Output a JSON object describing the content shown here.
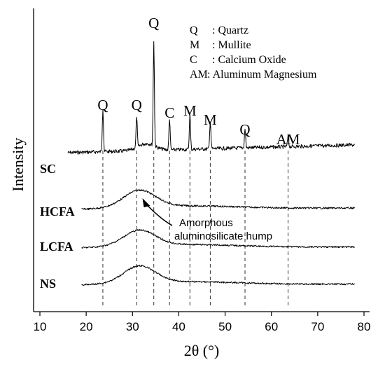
{
  "chart_data": {
    "type": "line",
    "xlabel": "2θ (°)",
    "ylabel": "Intensity",
    "xlim": [
      10,
      80
    ],
    "xticks": [
      10,
      20,
      30,
      40,
      50,
      60,
      70,
      80
    ],
    "grid": false,
    "series": [
      {
        "name": "SC",
        "x_range": [
          16,
          78
        ]
      },
      {
        "name": "HCFA",
        "x_range": [
          19,
          78
        ]
      },
      {
        "name": "LCFA",
        "x_range": [
          19,
          78
        ]
      },
      {
        "name": "NS",
        "x_range": [
          19,
          78
        ]
      }
    ],
    "peaks": [
      {
        "label": "Q",
        "x": 23.6
      },
      {
        "label": "Q",
        "x": 30.9
      },
      {
        "label": "Q",
        "x": 34.6
      },
      {
        "label": "C",
        "x": 38.0
      },
      {
        "label": "M",
        "x": 42.4
      },
      {
        "label": "M",
        "x": 46.8
      },
      {
        "label": "Q",
        "x": 54.3
      },
      {
        "label": "AM",
        "x": 63.6
      }
    ],
    "legend": {
      "position": "top-right",
      "entries": [
        {
          "key": "Q",
          "text": ": Quartz"
        },
        {
          "key": "M",
          "text": ": Mullite"
        },
        {
          "key": "C",
          "text": ": Calcium Oxide"
        },
        {
          "key": "AM",
          "text": ": Aluminum Magnesium"
        }
      ]
    },
    "annotation": {
      "lines": [
        "Amorphous",
        "aluminosilicate hump"
      ],
      "points_to_x": 32
    }
  }
}
